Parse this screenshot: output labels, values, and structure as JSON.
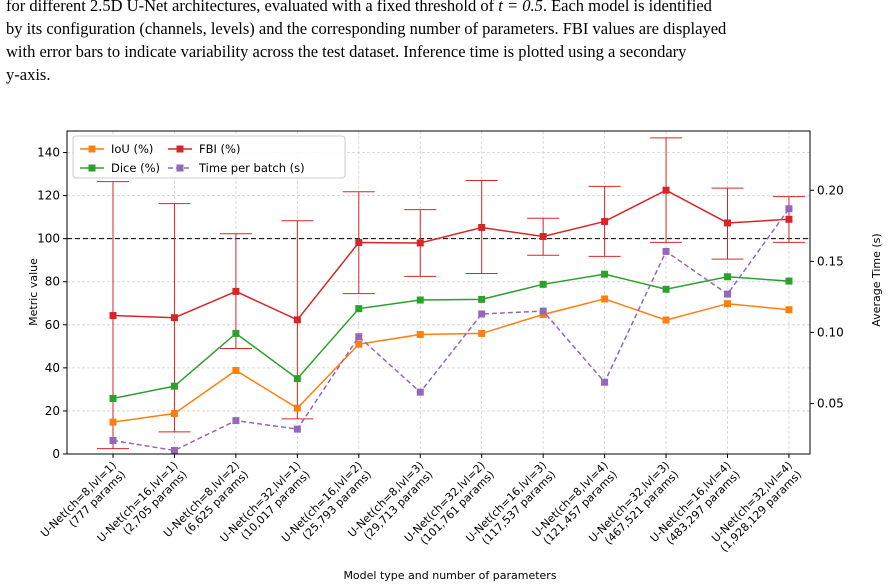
{
  "caption": {
    "line1_pre": "for different 2.5D U-Net architectures, evaluated with a fixed threshold of ",
    "line1_math": "t = 0.5",
    "line1_post": ". Each model is identified",
    "line2": "by its configuration (channels, levels) and the corresponding number of parameters. FBI values are displayed",
    "line3": "with error bars to indicate variability across the test dataset. Inference time is plotted using a secondary",
    "line4": "y-axis."
  },
  "chart_data": {
    "type": "line",
    "xlabel": "Model type and number of parameters",
    "ylabel": "Metric value",
    "y2label": "Average Time (s)",
    "ylim": [
      0,
      150
    ],
    "y2lim": [
      0.0145,
      0.2417
    ],
    "yticks": [
      0,
      20,
      40,
      60,
      80,
      100,
      120,
      140
    ],
    "y2ticks": [
      0.05,
      0.1,
      0.15,
      0.2
    ],
    "y2tick_labels": [
      "0.05",
      "0.10",
      "0.15",
      "0.20"
    ],
    "reference_line": 100,
    "grid": true,
    "legend_position": "upper-left",
    "categories": [
      [
        "U-Net(ch=8,lvl=1)",
        "(777 params)"
      ],
      [
        "U-Net(ch=16,lvl=1)",
        "(2,705 params)"
      ],
      [
        "U-Net(ch=8,lvl=2)",
        "(6,625 params)"
      ],
      [
        "U-Net(ch=32,lvl=1)",
        "(10,017 params)"
      ],
      [
        "U-Net(ch=16,lvl=2)",
        "(25,793 params)"
      ],
      [
        "U-Net(ch=8,lvl=3)",
        "(29,713 params)"
      ],
      [
        "U-Net(ch=32,lvl=2)",
        "(101,761 params)"
      ],
      [
        "U-Net(ch=16,lvl=3)",
        "(117,537 params)"
      ],
      [
        "U-Net(ch=8,lvl=4)",
        "(121,457 params)"
      ],
      [
        "U-Net(ch=32,lvl=3)",
        "(467,521 params)"
      ],
      [
        "U-Net(ch=16,lvl=4)",
        "(483,297 params)"
      ],
      [
        "U-Net(ch=32,lvl=4)",
        "(1,928,129 params)"
      ]
    ],
    "series": [
      {
        "name": "IoU (%)",
        "axis": "left",
        "color": "#ff7f0e",
        "dash": false,
        "values": [
          14.8,
          18.8,
          38.8,
          21.3,
          51.0,
          55.5,
          56.0,
          64.8,
          72.0,
          62.2,
          69.8,
          67.0
        ]
      },
      {
        "name": "Dice (%)",
        "axis": "left",
        "color": "#2ca02c",
        "dash": false,
        "values": [
          25.8,
          31.5,
          56.0,
          35.0,
          67.5,
          71.5,
          71.8,
          78.8,
          83.5,
          76.5,
          82.3,
          80.3
        ]
      },
      {
        "name": "FBI (%)",
        "axis": "left",
        "color": "#d62728",
        "dash": false,
        "values": [
          64.3,
          63.3,
          75.5,
          62.3,
          98.2,
          98.0,
          105.2,
          101.0,
          108.0,
          122.5,
          107.3,
          109.0
        ],
        "error_low": [
          2.5,
          10.3,
          49.0,
          16.3,
          74.5,
          82.5,
          83.8,
          92.3,
          91.8,
          98.3,
          90.5,
          98.3
        ],
        "error_high": [
          126.5,
          116.3,
          102.3,
          108.3,
          121.8,
          113.5,
          127.0,
          109.5,
          124.3,
          146.8,
          123.5,
          119.5
        ]
      },
      {
        "name": "Time per batch (s)",
        "axis": "right",
        "color": "#9467bd",
        "dash": true,
        "values": [
          0.024,
          0.017,
          0.038,
          0.032,
          0.097,
          0.058,
          0.113,
          0.115,
          0.065,
          0.157,
          0.127,
          0.187
        ]
      }
    ]
  }
}
